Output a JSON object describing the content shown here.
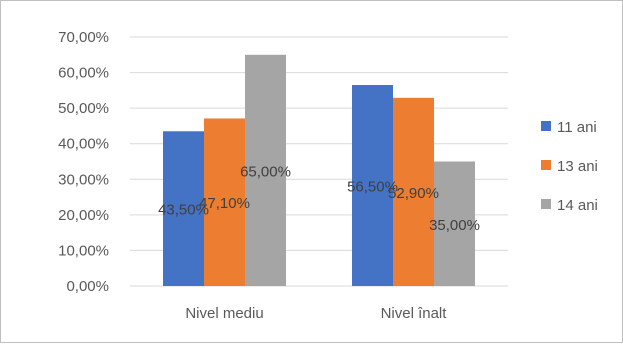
{
  "chart_data": {
    "type": "bar",
    "categories": [
      "Nivel mediu",
      "Nivel înalt"
    ],
    "series": [
      {
        "name": "11 ani",
        "color": "#4472C4",
        "values": [
          43.5,
          56.5
        ],
        "labels": [
          "43,50%",
          "56,50%"
        ]
      },
      {
        "name": "13 ani",
        "color": "#ED7D31",
        "values": [
          47.1,
          52.9
        ],
        "labels": [
          "47,10%",
          "52,90%"
        ]
      },
      {
        "name": "14 ani",
        "color": "#A5A5A5",
        "values": [
          65.0,
          35.0
        ],
        "labels": [
          "65,00%",
          "35,00%"
        ]
      }
    ],
    "ylim": [
      0,
      70
    ],
    "y_ticks": [
      {
        "value": 0,
        "label": "0,00%"
      },
      {
        "value": 10,
        "label": "10,00%"
      },
      {
        "value": 20,
        "label": "20,00%"
      },
      {
        "value": 30,
        "label": "30,00%"
      },
      {
        "value": 40,
        "label": "40,00%"
      },
      {
        "value": 50,
        "label": "50,00%"
      },
      {
        "value": 60,
        "label": "60,00%"
      },
      {
        "value": 70,
        "label": "70,00%"
      }
    ],
    "grid": true,
    "legend_position": "right"
  },
  "colors": {
    "gridline": "#D9D9D9",
    "axis_text": "#595959",
    "data_label_text": "#404040",
    "border": "#BFBFBF"
  }
}
